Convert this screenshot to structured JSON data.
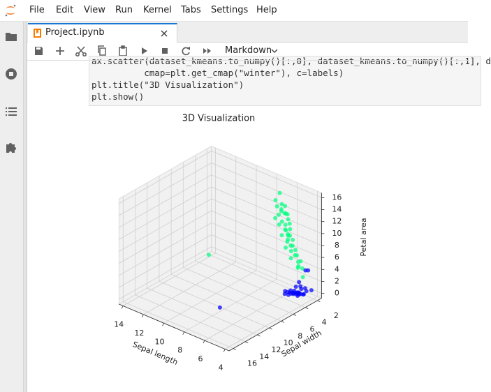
{
  "menu": [
    "File",
    "Edit",
    "View",
    "Run",
    "Kernel",
    "Tabs",
    "Settings",
    "Help"
  ],
  "tab": {
    "title": "Project.ipynb"
  },
  "toolbar": {
    "cell_type": "Markdown"
  },
  "code": {
    "lines": [
      "ax.scatter(dataset_kmeans.to_numpy()[:,0], dataset_kmeans.to_numpy()[:,1], d",
      "          cmap=plt.get_cmap(\"winter\"), c=labels)",
      "plt.title(\"3D Visualization\")",
      "plt.show()"
    ]
  },
  "chart_data": {
    "type": "scatter3d",
    "title": "3D Visualization",
    "xlabel": "Sepal length",
    "ylabel": "Sepal width",
    "zlabel": "Petal area",
    "xlim": [
      3.6,
      14.4
    ],
    "ylim": [
      1.3,
      16.7
    ],
    "zlim": [
      -0.8,
      16.8
    ],
    "xticks": [
      4,
      6,
      8,
      10,
      12,
      14
    ],
    "yticks": [
      2,
      4,
      6,
      8,
      10,
      12,
      14,
      16
    ],
    "zticks": [
      0,
      2,
      4,
      6,
      8,
      10,
      12,
      14,
      16
    ],
    "grid": true,
    "series": [
      {
        "color": "#00ff80",
        "x": [
          6.7,
          7.0,
          6.5,
          6.3,
          6.9,
          6.6,
          6.1,
          6.4,
          6.8,
          6.0,
          6.3,
          5.9,
          6.2,
          6.7,
          5.8,
          6.1,
          6.4,
          5.7,
          6.0,
          6.5,
          5.6,
          5.9,
          6.2,
          5.5,
          5.8,
          6.0,
          5.4,
          5.7,
          5.2,
          5.5,
          5.6,
          5.0,
          5.3,
          5.1,
          4.9,
          5.4,
          5.7,
          6.9,
          4.9,
          7.2,
          6.6,
          6.0
        ],
        "y": [
          3.0,
          3.2,
          3.0,
          2.8,
          3.1,
          2.9,
          3.0,
          2.7,
          3.0,
          2.8,
          3.3,
          2.7,
          2.9,
          3.1,
          2.8,
          3.0,
          2.6,
          3.0,
          2.8,
          3.0,
          2.7,
          3.1,
          2.5,
          2.9,
          2.7,
          3.2,
          2.6,
          2.8,
          2.7,
          2.5,
          3.0,
          2.4,
          2.3,
          2.6,
          2.3,
          2.2,
          3.4,
          2.4,
          2.2,
          2.9,
          1.8,
          16.0
        ],
        "z": [
          15.5,
          14.2,
          13.8,
          13.5,
          13.2,
          12.8,
          12.5,
          12.2,
          11.8,
          11.5,
          11.2,
          10.8,
          10.5,
          10.3,
          10.0,
          9.7,
          9.4,
          9.1,
          8.8,
          8.6,
          8.3,
          8.0,
          7.8,
          7.5,
          7.2,
          7.0,
          6.7,
          6.4,
          6.0,
          5.7,
          5.4,
          5.0,
          4.6,
          4.2,
          3.8,
          3.5,
          12.9,
          12.0,
          2.3,
          10.9,
          8.0,
          13.1
        ]
      },
      {
        "color": "#0000ff",
        "x": [
          5.0,
          4.8,
          5.1,
          4.6,
          5.4,
          4.4,
          5.0,
          4.7,
          5.2,
          5.3,
          5.1,
          4.9,
          5.0,
          5.4,
          4.8,
          5.7,
          5.1,
          4.6,
          5.0,
          4.4,
          5.5,
          4.5,
          5.1,
          4.8,
          4.3,
          5.2,
          5.0,
          5.0,
          4.8,
          5.5
        ],
        "y": [
          3.4,
          3.0,
          3.5,
          3.1,
          3.9,
          2.9,
          3.6,
          3.2,
          4.1,
          3.7,
          3.8,
          3.0,
          3.0,
          3.4,
          3.4,
          3.8,
          3.3,
          3.6,
          2.3,
          3.0,
          4.2,
          2.3,
          2.5,
          2.0,
          1.8,
          2.1,
          3.2,
          1.6,
          1.5,
          15.0
        ],
        "z": [
          0.2,
          0.2,
          0.3,
          0.2,
          0.4,
          0.2,
          0.2,
          0.1,
          0.2,
          0.3,
          0.3,
          0.2,
          0.1,
          0.4,
          0.2,
          0.3,
          0.5,
          0.2,
          0.3,
          0.2,
          0.2,
          0.3,
          1.5,
          0.4,
          0.3,
          0.5,
          1.2,
          3.0,
          3.1,
          4.1
        ]
      }
    ]
  }
}
